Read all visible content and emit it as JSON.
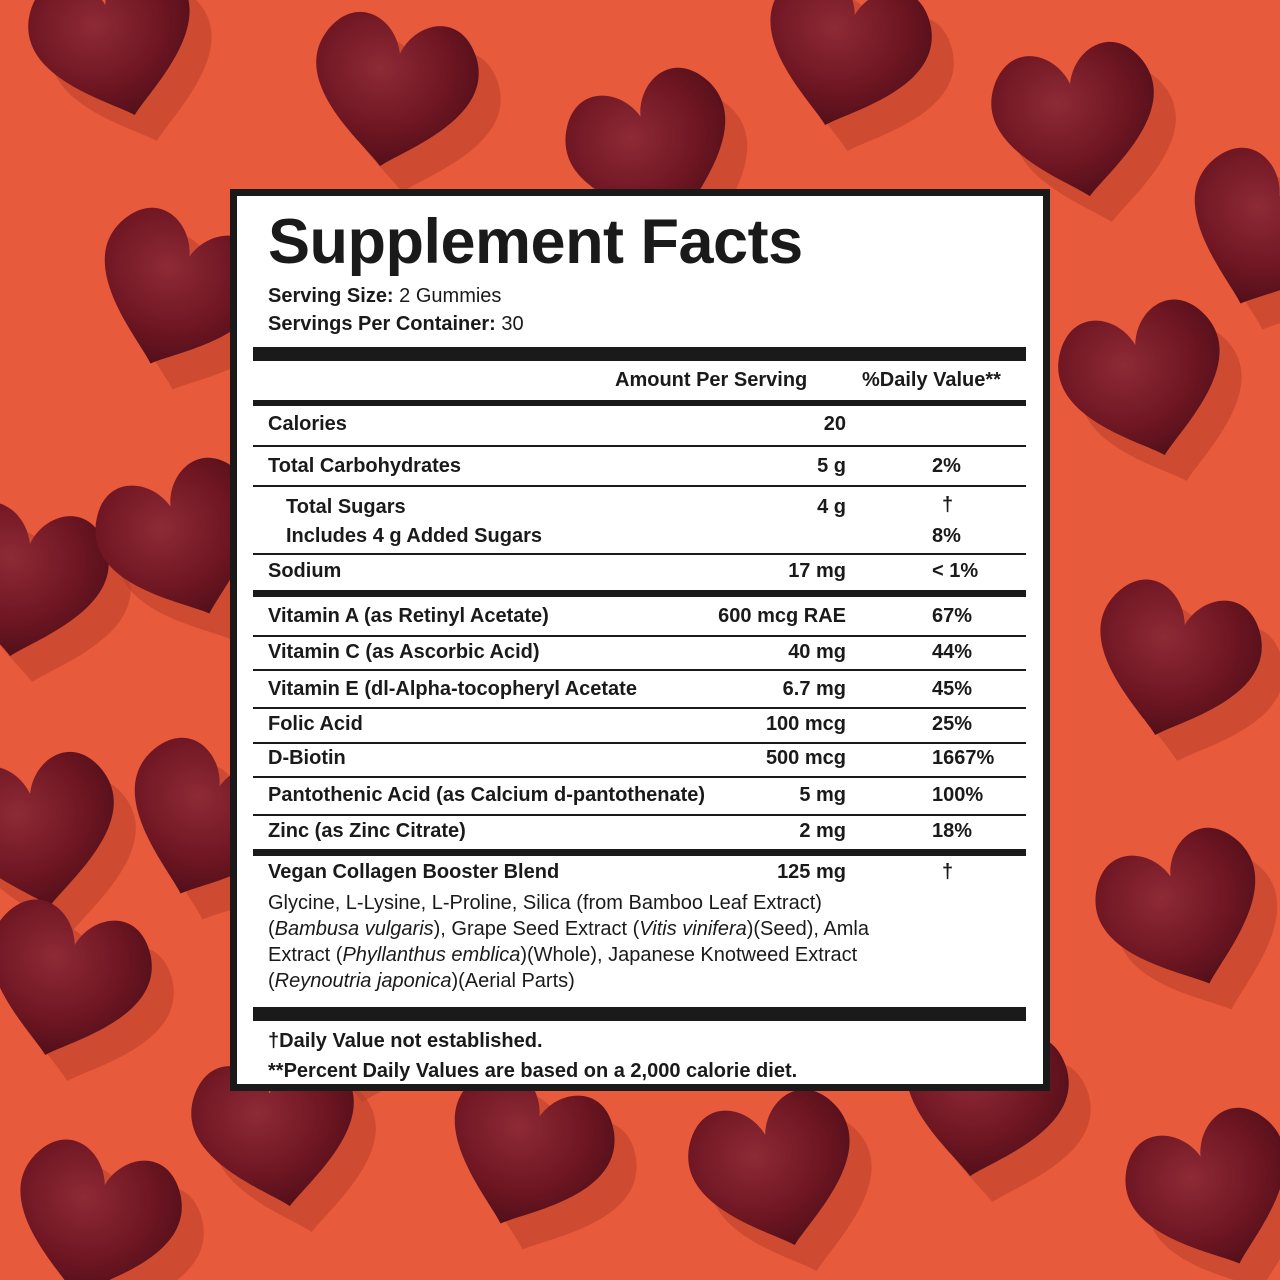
{
  "label": {
    "title": "Supplement Facts",
    "serving_size_label": "Serving Size:",
    "serving_size_value": "2 Gummies",
    "servings_per_container_label": "Servings Per Container:",
    "servings_per_container_value": "30",
    "header_amount": "Amount Per Serving",
    "header_dv": "%Daily Value**",
    "rows": [
      {
        "name": "Calories",
        "amount": "20",
        "dv": ""
      },
      {
        "name": "Total Carbohydrates",
        "amount": "5 g",
        "dv": "2%"
      },
      {
        "name": "Total Sugars",
        "amount": "4 g",
        "dv": "†"
      },
      {
        "name": "Includes 4 g Added Sugars",
        "amount": "",
        "dv": "8%"
      },
      {
        "name": "Sodium",
        "amount": "17 mg",
        "dv": "< 1%"
      },
      {
        "name": "Vitamin A (as Retinyl Acetate)",
        "amount": "600 mcg RAE",
        "dv": "67%"
      },
      {
        "name": "Vitamin C (as Ascorbic Acid)",
        "amount": "40 mg",
        "dv": "44%"
      },
      {
        "name": "Vitamin E (dl-Alpha-tocopheryl Acetate",
        "amount": "6.7 mg",
        "dv": "45%"
      },
      {
        "name": "Folic Acid",
        "amount": "100 mcg",
        "dv": "25%"
      },
      {
        "name": "D-Biotin",
        "amount": "500 mcg",
        "dv": "1667%"
      },
      {
        "name": "Pantothenic Acid (as Calcium d-pantothenate)",
        "amount": "5 mg",
        "dv": "100%"
      },
      {
        "name": "Zinc (as Zinc Citrate)",
        "amount": "2 mg",
        "dv": "18%"
      },
      {
        "name": "Vegan Collagen Booster Blend",
        "amount": "125 mg",
        "dv": "†"
      }
    ],
    "blend": {
      "p1": "Glycine, L-Lysine, L-Proline, Silica (from Bamboo Leaf Extract)(",
      "i1": "Bambusa vulgaris",
      "p2": "), Grape Seed Extract (",
      "i2": "Vitis vinifera",
      "p3": ")(Seed), Amla Extract (",
      "i3": "Phyllanthus emblica",
      "p4": ")(Whole), Japanese Knotweed Extract (",
      "i4": "Reynoutria japonica",
      "p5": ")(Aerial Parts)"
    },
    "footnote_1": "†Daily Value not established.",
    "footnote_2": "**Percent Daily Values are based on a 2,000 calorie diet."
  },
  "colors": {
    "background": "#e85a3c",
    "gummy": "#6e1622",
    "gummy_highlight": "#8e2a36",
    "shadow": "#b8402a",
    "ink": "#1a1a1a"
  }
}
